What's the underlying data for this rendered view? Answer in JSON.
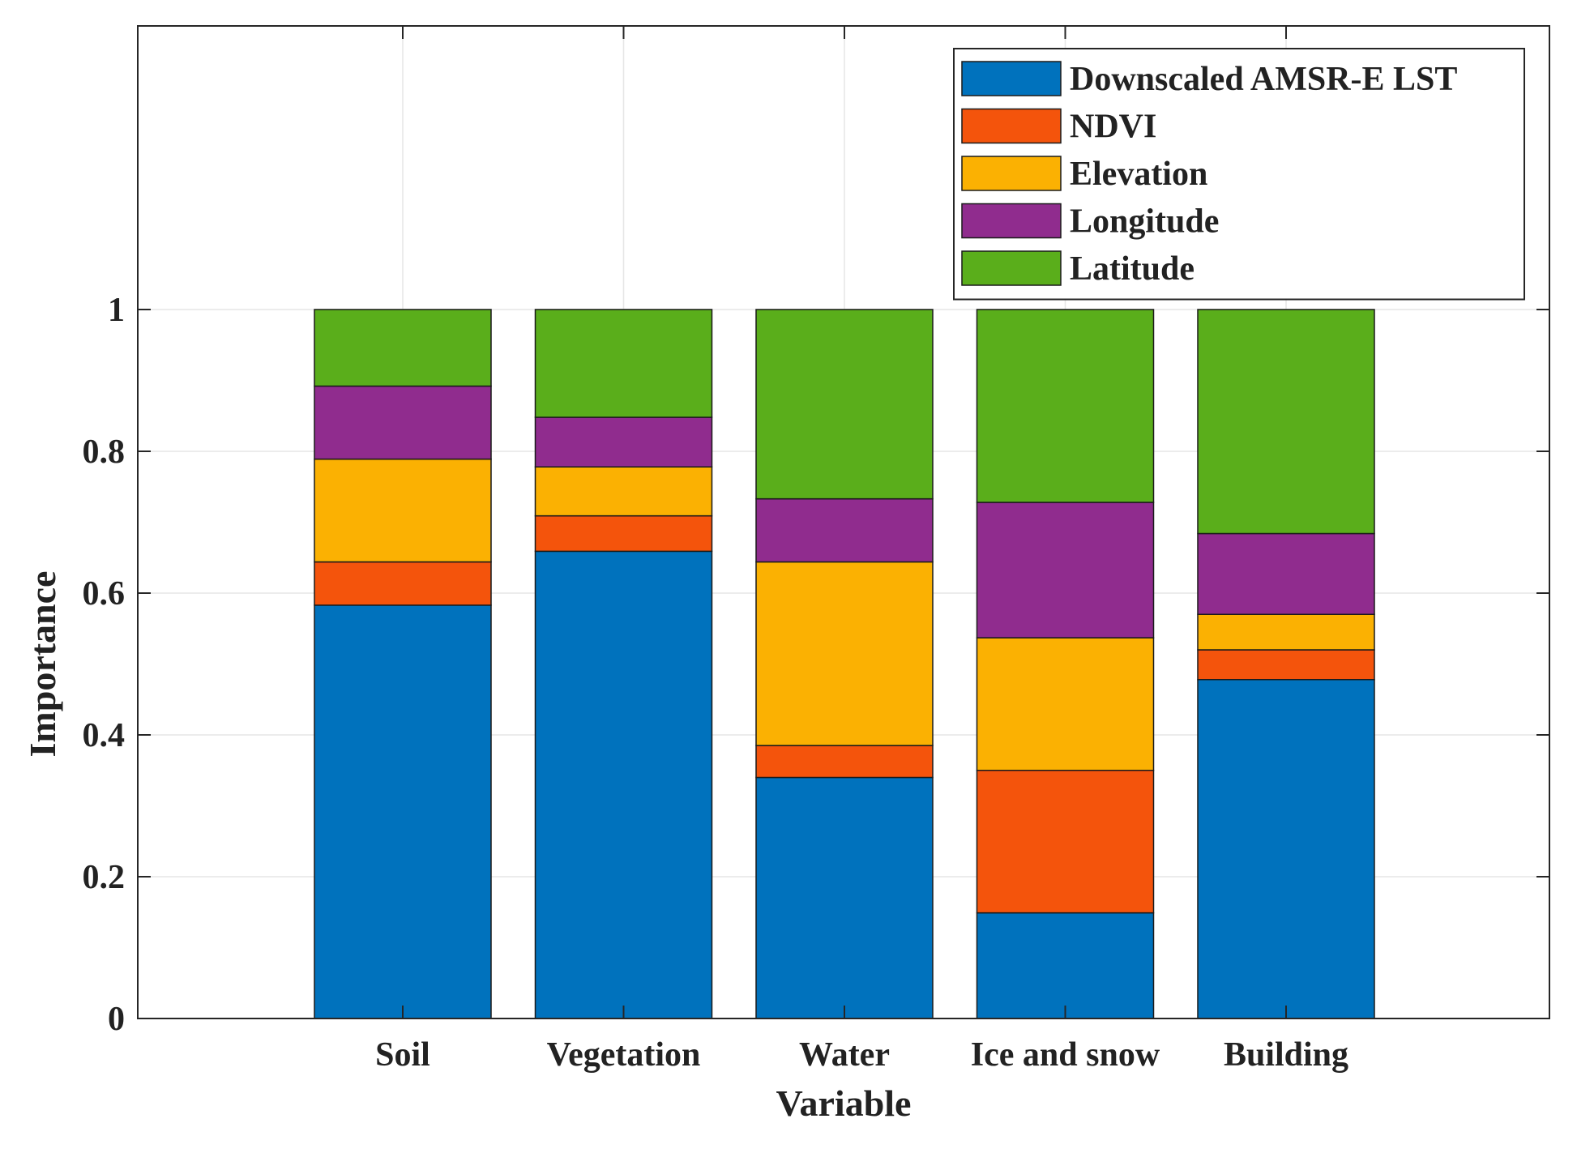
{
  "chart_data": {
    "type": "bar",
    "stacked": true,
    "categories": [
      "Soil",
      "Vegetation",
      "Water",
      "Ice and snow",
      "Building"
    ],
    "series": [
      {
        "name": "Downscaled AMSR-E LST",
        "color": "#0072BD",
        "values": [
          0.583,
          0.659,
          0.34,
          0.149,
          0.478
        ]
      },
      {
        "name": "NDVI",
        "color": "#F4540C",
        "values": [
          0.061,
          0.05,
          0.045,
          0.201,
          0.042
        ]
      },
      {
        "name": "Elevation",
        "color": "#FBB102",
        "values": [
          0.145,
          0.069,
          0.259,
          0.187,
          0.05
        ]
      },
      {
        "name": "Longitude",
        "color": "#902C8E",
        "values": [
          0.103,
          0.07,
          0.089,
          0.191,
          0.114
        ]
      },
      {
        "name": "Latitude",
        "color": "#5AAE1B",
        "values": [
          0.108,
          0.152,
          0.267,
          0.272,
          0.316
        ]
      }
    ],
    "xlabel": "Variable",
    "ylabel": "Importance",
    "ylim": [
      0,
      1.4
    ],
    "yticks": [
      "0",
      "0.2",
      "0.4",
      "0.6",
      "0.8",
      "1"
    ],
    "ytick_values": [
      0,
      0.2,
      0.4,
      0.6,
      0.8,
      1
    ],
    "grid": true,
    "legend_position": "top-right"
  }
}
